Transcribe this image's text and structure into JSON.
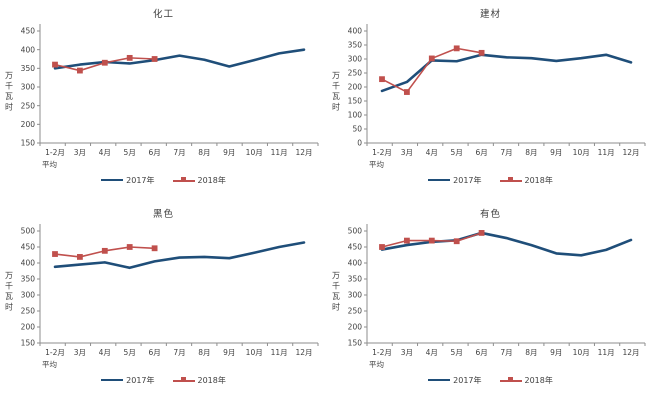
{
  "page": {
    "background": "#FFFFFF"
  },
  "chart_data": [
    {
      "type": "line",
      "title": "化工",
      "ylabel": "万千瓦时",
      "ylim": [
        150,
        450
      ],
      "ystep": 50,
      "grid": false,
      "legend_position": "bottom",
      "categories": [
        "1-2月",
        "3月",
        "4月",
        "5月",
        "6月",
        "7月",
        "8月",
        "9月",
        "10月",
        "11月",
        "12月"
      ],
      "category_sublabel": "平均",
      "series": [
        {
          "name": "2017年",
          "color": "#1F4E79",
          "marker": "none",
          "values": [
            350,
            360,
            367,
            363,
            372,
            384,
            373,
            355,
            372,
            390,
            400
          ]
        },
        {
          "name": "2018年",
          "color": "#C0504D",
          "marker": "square",
          "values": [
            360,
            344,
            365,
            378,
            375
          ]
        }
      ]
    },
    {
      "type": "line",
      "title": "建材",
      "ylabel": "万千瓦时",
      "ylim": [
        0,
        400
      ],
      "ystep": 50,
      "grid": false,
      "legend_position": "bottom",
      "categories": [
        "1-2月",
        "3月",
        "4月",
        "5月",
        "6月",
        "7月",
        "8月",
        "9月",
        "10月",
        "11月",
        "12月"
      ],
      "category_sublabel": "平均",
      "series": [
        {
          "name": "2017年",
          "color": "#1F4E79",
          "marker": "none",
          "values": [
            186,
            218,
            295,
            292,
            315,
            306,
            303,
            293,
            303,
            315,
            288
          ]
        },
        {
          "name": "2018年",
          "color": "#C0504D",
          "marker": "square",
          "values": [
            228,
            182,
            302,
            338,
            322
          ]
        }
      ]
    },
    {
      "type": "line",
      "title": "黑色",
      "ylabel": "万千瓦时",
      "ylim": [
        150,
        500
      ],
      "ystep": 50,
      "grid": false,
      "legend_position": "bottom",
      "categories": [
        "1-2月",
        "3月",
        "4月",
        "5月",
        "6月",
        "7月",
        "8月",
        "9月",
        "10月",
        "11月",
        "12月"
      ],
      "category_sublabel": "平均",
      "series": [
        {
          "name": "2017年",
          "color": "#1F4E79",
          "marker": "none",
          "values": [
            388,
            395,
            402,
            385,
            405,
            417,
            419,
            415,
            432,
            450,
            464
          ]
        },
        {
          "name": "2018年",
          "color": "#C0504D",
          "marker": "square",
          "values": [
            428,
            419,
            438,
            450,
            446
          ]
        }
      ]
    },
    {
      "type": "line",
      "title": "有色",
      "ylabel": "万千瓦时",
      "ylim": [
        150,
        500
      ],
      "ystep": 50,
      "grid": false,
      "legend_position": "bottom",
      "categories": [
        "1-2月",
        "3月",
        "4月",
        "5月",
        "6月",
        "7月",
        "8月",
        "9月",
        "10月",
        "11月",
        "12月"
      ],
      "category_sublabel": "平均",
      "series": [
        {
          "name": "2017年",
          "color": "#1F4E79",
          "marker": "none",
          "values": [
            442,
            456,
            466,
            471,
            494,
            478,
            456,
            430,
            424,
            441,
            472
          ]
        },
        {
          "name": "2018年",
          "color": "#C0504D",
          "marker": "square",
          "values": [
            450,
            470,
            470,
            468,
            494
          ]
        }
      ]
    }
  ]
}
